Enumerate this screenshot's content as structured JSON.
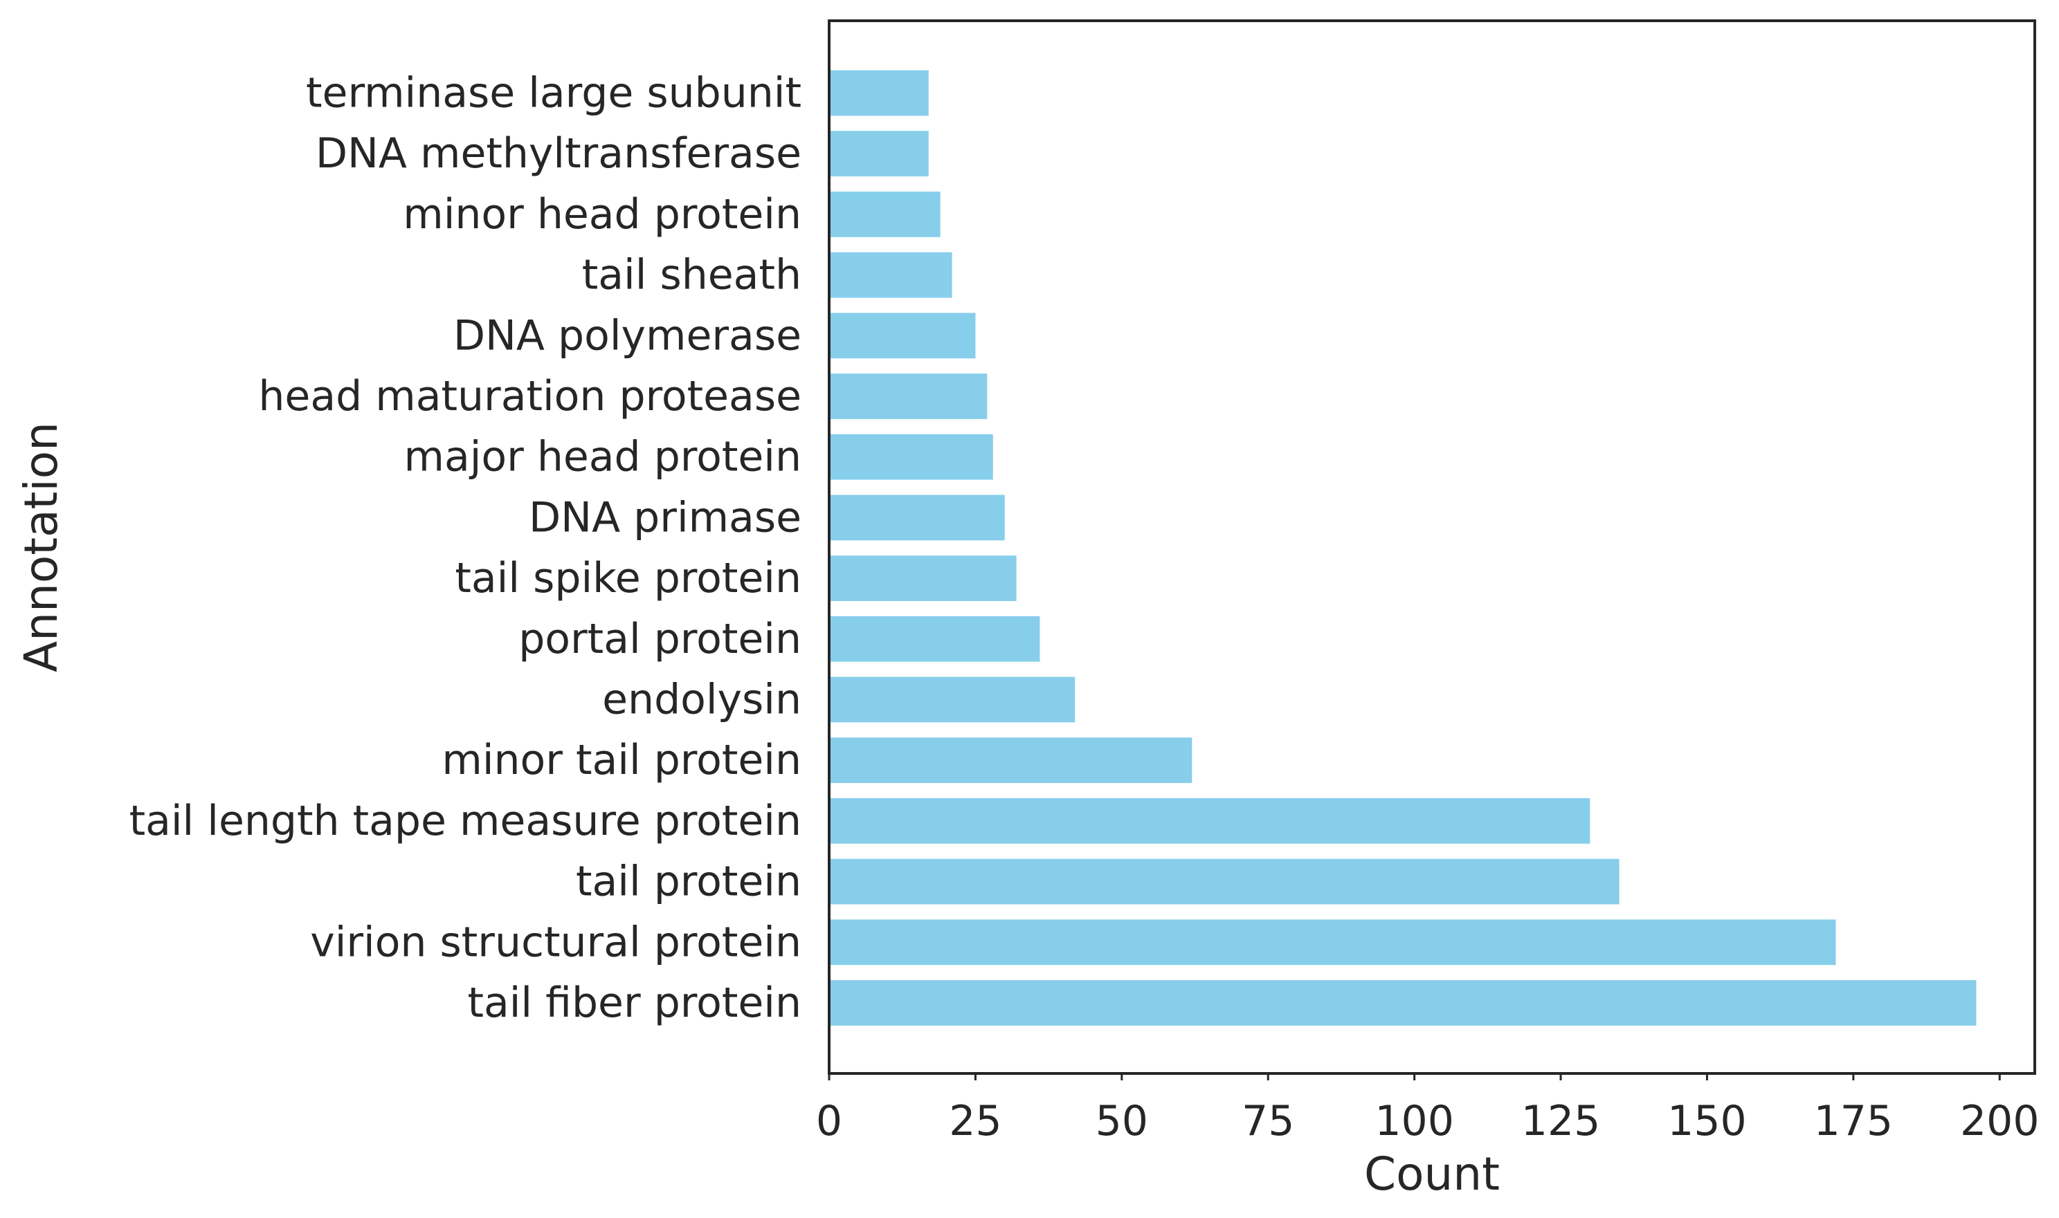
{
  "chart_data": {
    "type": "bar",
    "orientation": "horizontal",
    "title": "",
    "xlabel": "Count",
    "ylabel": "Annotation",
    "xlim": [
      0,
      206
    ],
    "xticks": [
      0,
      25,
      50,
      75,
      100,
      125,
      150,
      175,
      200
    ],
    "grid": false,
    "bar_color": "#87ceeb",
    "categories": [
      "tail fiber protein",
      "virion structural protein",
      "tail protein",
      "tail length tape measure protein",
      "minor tail protein",
      "endolysin",
      "portal protein",
      "tail spike protein",
      "DNA primase",
      "major head protein",
      "head maturation protease",
      "DNA polymerase",
      "tail sheath",
      "minor head protein",
      "DNA methyltransferase",
      "terminase large subunit"
    ],
    "values": [
      196,
      172,
      135,
      130,
      62,
      42,
      36,
      32,
      30,
      28,
      27,
      25,
      21,
      19,
      17,
      17
    ]
  }
}
